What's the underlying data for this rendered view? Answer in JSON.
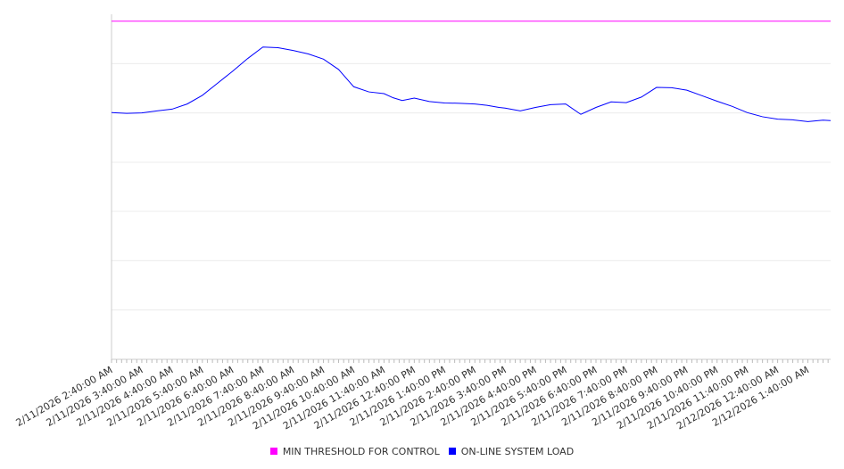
{
  "chart_data": {
    "type": "line",
    "title": "",
    "xlabel": "",
    "ylabel": "",
    "grid": true,
    "legend_position": "bottom",
    "ylim": [
      0,
      1
    ],
    "x_tick_labels": [
      "2/11/2026 2:40:00 AM",
      "2/11/2026 3:40:00 AM",
      "2/11/2026 4:40:00 AM",
      "2/11/2026 5:40:00 AM",
      "2/11/2026 6:40:00 AM",
      "2/11/2026 7:40:00 AM",
      "2/11/2026 8:40:00 AM",
      "2/11/2026 9:40:00 AM",
      "2/11/2026 10:40:00 AM",
      "2/11/2026 11:40:00 AM",
      "2/11/2026 12:40:00 PM",
      "2/11/2026 1:40:00 PM",
      "2/11/2026 2:40:00 PM",
      "2/11/2026 3:40:00 PM",
      "2/11/2026 4:40:00 PM",
      "2/11/2026 5:40:00 PM",
      "2/11/2026 6:40:00 PM",
      "2/11/2026 7:40:00 PM",
      "2/11/2026 8:40:00 PM",
      "2/11/2026 9:40:00 PM",
      "2/11/2026 10:40:00 PM",
      "2/11/2026 11:40:00 PM",
      "2/12/2026 12:40:00 AM",
      "2/12/2026 1:40:00 AM"
    ],
    "x_hours": [
      0,
      0.5,
      1,
      1.5,
      2,
      2.5,
      3,
      3.5,
      4,
      4.5,
      5,
      5.5,
      6,
      6.5,
      7,
      7.5,
      8,
      8.5,
      9,
      9.3,
      9.6,
      10,
      10.5,
      11,
      11.5,
      12,
      12.4,
      12.8,
      13,
      13.5,
      14,
      14.5,
      15,
      15.5,
      16,
      16.5,
      17,
      17.5,
      18,
      18.5,
      19,
      19.5,
      20,
      20.5,
      21,
      21.5,
      22,
      22.5,
      23,
      23.5,
      23.75
    ],
    "series": [
      {
        "name": "MIN THRESHOLD FOR CONTROL",
        "color": "#ff00ff",
        "values": [
          0.98,
          0.98,
          0.98,
          0.98,
          0.98,
          0.98,
          0.98,
          0.98,
          0.98,
          0.98,
          0.98,
          0.98,
          0.98,
          0.98,
          0.98,
          0.98,
          0.98,
          0.98,
          0.98,
          0.98,
          0.98,
          0.98,
          0.98,
          0.98,
          0.98,
          0.98,
          0.98,
          0.98,
          0.98,
          0.98,
          0.98,
          0.98,
          0.98,
          0.98,
          0.98,
          0.98,
          0.98,
          0.98,
          0.98,
          0.98,
          0.98,
          0.98,
          0.98,
          0.98,
          0.98,
          0.98,
          0.98,
          0.98,
          0.98,
          0.98,
          0.98
        ]
      },
      {
        "name": "ON-LINE SYSTEM LOAD",
        "color": "#0000ff",
        "values": [
          0.715,
          0.713,
          0.714,
          0.72,
          0.725,
          0.74,
          0.765,
          0.8,
          0.835,
          0.872,
          0.905,
          0.903,
          0.895,
          0.885,
          0.87,
          0.84,
          0.79,
          0.775,
          0.77,
          0.758,
          0.75,
          0.757,
          0.747,
          0.743,
          0.742,
          0.74,
          0.736,
          0.73,
          0.728,
          0.72,
          0.73,
          0.738,
          0.74,
          0.71,
          0.73,
          0.746,
          0.744,
          0.76,
          0.788,
          0.787,
          0.78,
          0.764,
          0.748,
          0.733,
          0.715,
          0.703,
          0.696,
          0.694,
          0.689,
          0.693,
          0.692
        ]
      }
    ]
  },
  "legend": {
    "items": [
      {
        "label": "MIN THRESHOLD FOR CONTROL",
        "color": "#ff00ff"
      },
      {
        "label": "ON-LINE SYSTEM LOAD",
        "color": "#0000ff"
      }
    ]
  }
}
